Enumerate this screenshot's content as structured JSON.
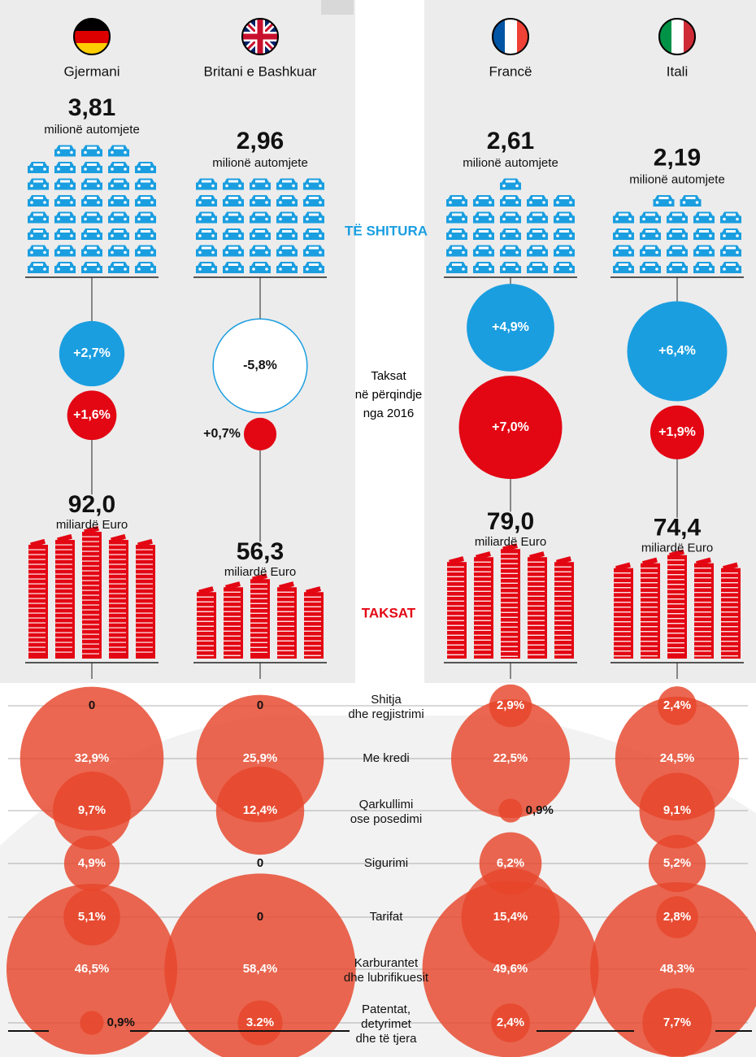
{
  "labels": {
    "sales": "TË SHITURA",
    "taxes": "TAKSAT",
    "change": [
      "Taksat",
      "në përqindje",
      "nga 2016"
    ]
  },
  "rows": [
    [
      "Shitja",
      "dhe regjistrimi"
    ],
    [
      "Me kredi"
    ],
    [
      "Qarkullimi",
      "ose posedimi"
    ],
    [
      "Sigurimi"
    ],
    [
      "Tarifat"
    ],
    [
      "Karburantet",
      "dhe lubrifikuesit"
    ],
    [
      "Patentat,",
      "detyrimet",
      "dhe të tjera"
    ]
  ],
  "countries": [
    {
      "name": "Gjermani",
      "sales": {
        "value": 3.81,
        "label": "3,81"
      },
      "sales_unit": "milionë automjete",
      "sales_change": {
        "value": 2.7,
        "label": "+2,7%"
      },
      "tax_change": {
        "value": 1.6,
        "label": "+1,6%"
      },
      "taxes": {
        "value": 92.0,
        "label": "92,0"
      },
      "taxes_unit": "miliardë Euro",
      "breakdown": [
        {
          "value": 0,
          "label": "0"
        },
        {
          "value": 32.9,
          "label": "32,9%"
        },
        {
          "value": 9.7,
          "label": "9,7%"
        },
        {
          "value": 4.9,
          "label": "4,9%"
        },
        {
          "value": 5.1,
          "label": "5,1%"
        },
        {
          "value": 46.5,
          "label": "46,5%"
        },
        {
          "value": 0.9,
          "label": "0,9%"
        }
      ]
    },
    {
      "name": "Britani e Bashkuar",
      "sales": {
        "value": 2.96,
        "label": "2,96"
      },
      "sales_unit": "milionë automjete",
      "sales_change": {
        "value": -5.8,
        "label": "-5,8%"
      },
      "tax_change": {
        "value": 0.7,
        "label": "+0,7%"
      },
      "taxes": {
        "value": 56.3,
        "label": "56,3"
      },
      "taxes_unit": "miliardë Euro",
      "breakdown": [
        {
          "value": 0,
          "label": "0"
        },
        {
          "value": 25.9,
          "label": "25,9%"
        },
        {
          "value": 12.4,
          "label": "12,4%"
        },
        {
          "value": 0,
          "label": "0"
        },
        {
          "value": 0,
          "label": "0"
        },
        {
          "value": 58.4,
          "label": "58,4%"
        },
        {
          "value": 3.2,
          "label": "3.2%"
        }
      ]
    },
    {
      "name": "Francë",
      "sales": {
        "value": 2.61,
        "label": "2,61"
      },
      "sales_unit": "milionë automjete",
      "sales_change": {
        "value": 4.9,
        "label": "+4,9%"
      },
      "tax_change": {
        "value": 7.0,
        "label": "+7,0%"
      },
      "taxes": {
        "value": 79.0,
        "label": "79,0"
      },
      "taxes_unit": "miliardë Euro",
      "breakdown": [
        {
          "value": 2.9,
          "label": "2,9%"
        },
        {
          "value": 22.5,
          "label": "22,5%"
        },
        {
          "value": 0.9,
          "label": "0,9%"
        },
        {
          "value": 6.2,
          "label": "6,2%"
        },
        {
          "value": 15.4,
          "label": "15,4%"
        },
        {
          "value": 49.6,
          "label": "49,6%"
        },
        {
          "value": 2.4,
          "label": "2,4%"
        }
      ]
    },
    {
      "name": "Itali",
      "sales": {
        "value": 2.19,
        "label": "2,19"
      },
      "sales_unit": "milionë automjete",
      "sales_change": {
        "value": 6.4,
        "label": "+6,4%"
      },
      "tax_change": {
        "value": 1.9,
        "label": "+1,9%"
      },
      "taxes": {
        "value": 74.4,
        "label": "74,4"
      },
      "taxes_unit": "miliardë Euro",
      "breakdown": [
        {
          "value": 2.4,
          "label": "2,4%"
        },
        {
          "value": 24.5,
          "label": "24,5%"
        },
        {
          "value": 9.1,
          "label": "9,1%"
        },
        {
          "value": 5.2,
          "label": "5,2%"
        },
        {
          "value": 2.8,
          "label": "2,8%"
        },
        {
          "value": 48.3,
          "label": "48,3%"
        },
        {
          "value": 7.7,
          "label": "7,7%"
        }
      ]
    }
  ]
}
